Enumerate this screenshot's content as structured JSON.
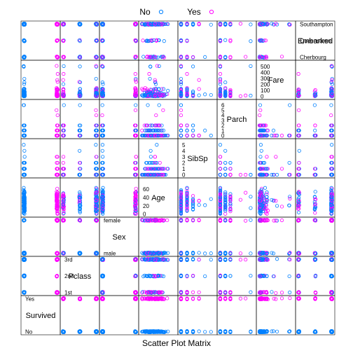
{
  "chart_data": {
    "type": "scatter",
    "title": "Scatter Plot Matrix",
    "legend": {
      "placement": "top",
      "entries": [
        {
          "name": "No",
          "color": "#0080ff"
        },
        {
          "name": "Yes",
          "color": "#ff00ff"
        }
      ]
    },
    "variables": [
      {
        "name": "Survived",
        "kind": "categorical",
        "levels": [
          "No",
          "Yes"
        ]
      },
      {
        "name": "Pclass",
        "kind": "categorical",
        "levels": [
          "1st",
          "2nd",
          "3rd"
        ]
      },
      {
        "name": "Sex",
        "kind": "categorical",
        "levels": [
          "male",
          "female"
        ]
      },
      {
        "name": "Age",
        "kind": "numeric",
        "range": [
          0,
          80
        ],
        "ticks": [
          0,
          20,
          40,
          60
        ]
      },
      {
        "name": "SibSp",
        "kind": "numeric",
        "range": [
          0,
          5.5
        ],
        "ticks": [
          0,
          1,
          2,
          3,
          4,
          5
        ]
      },
      {
        "name": "Parch",
        "kind": "numeric",
        "range": [
          0,
          6.5
        ],
        "ticks": [
          0,
          1,
          2,
          3,
          4,
          5,
          6
        ]
      },
      {
        "name": "Fare",
        "kind": "numeric",
        "range": [
          0,
          550
        ],
        "ticks": [
          0,
          100,
          200,
          300,
          400,
          500
        ]
      },
      {
        "name": "Embarked",
        "kind": "categorical",
        "levels": [
          "Cherbourg",
          "Queenstown",
          "Southampton"
        ]
      }
    ],
    "series_note_none": ""
  }
}
